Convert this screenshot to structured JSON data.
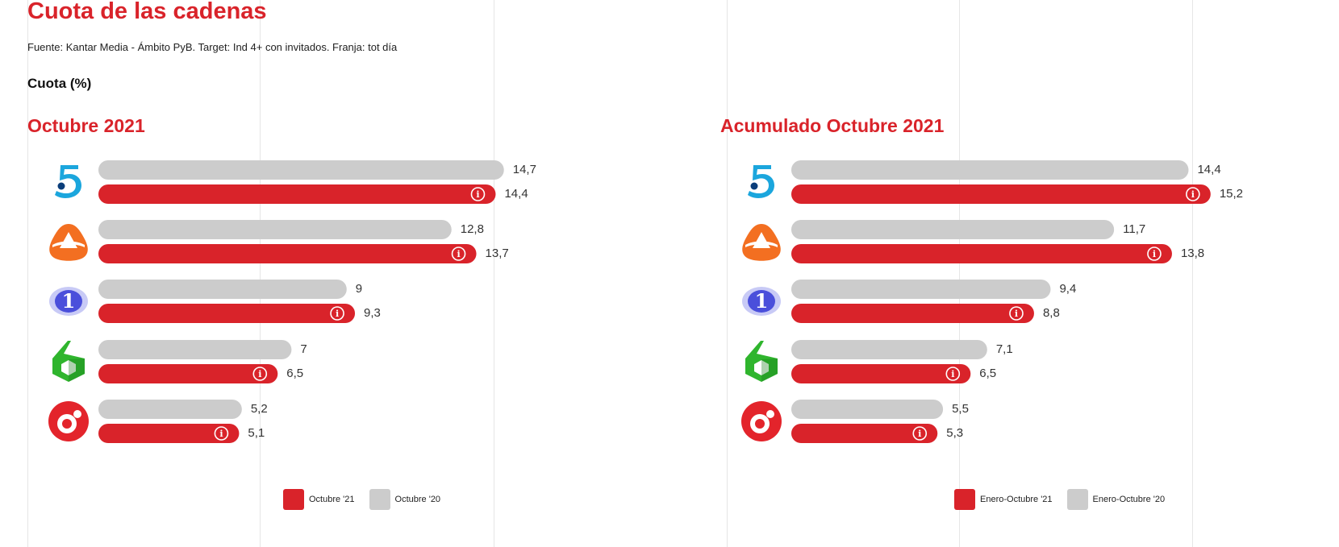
{
  "page": {
    "title": "Cuota de las cadenas",
    "source": "Fuente: Kantar Media - Ámbito PyB. Target: Ind 4+ con invitados. Franja: tot día",
    "unit_label": "Cuota (%)"
  },
  "colors": {
    "accent": "#d9232a",
    "current_bar": "#d9232a",
    "previous_bar": "#cccccc",
    "gridline": "#e6e6e6"
  },
  "channels": [
    {
      "name": "Telecinco",
      "icon": "telecinco-logo-icon"
    },
    {
      "name": "Antena 3",
      "icon": "antena3-logo-icon"
    },
    {
      "name": "La 1",
      "icon": "la1-logo-icon"
    },
    {
      "name": "laSexta",
      "icon": "lasexta-logo-icon"
    },
    {
      "name": "Cuatro",
      "icon": "cuatro-logo-icon"
    }
  ],
  "chart_data": [
    {
      "type": "bar",
      "orientation": "horizontal",
      "title": "Octubre 2021",
      "categories": [
        "Telecinco",
        "Antena 3",
        "La 1",
        "laSexta",
        "Cuatro"
      ],
      "series": [
        {
          "name": "Octubre '20",
          "values": [
            14.7,
            12.8,
            9,
            7,
            5.2
          ],
          "labels": [
            "14,7",
            "12,8",
            "9",
            "7",
            "5,2"
          ],
          "color": "#cccccc"
        },
        {
          "name": "Octubre '21",
          "values": [
            14.4,
            13.7,
            9.3,
            6.5,
            5.1
          ],
          "labels": [
            "14,4",
            "13,7",
            "9,3",
            "6,5",
            "5,1"
          ],
          "color": "#d9232a",
          "info_icon": true
        }
      ],
      "xlim": [
        0,
        20
      ],
      "legend": [
        {
          "label": "Octubre '21",
          "color": "#d9232a"
        },
        {
          "label": "Octubre '20",
          "color": "#cccccc"
        }
      ],
      "legend_position": "bottom"
    },
    {
      "type": "bar",
      "orientation": "horizontal",
      "title": "Acumulado Octubre 2021",
      "categories": [
        "Telecinco",
        "Antena 3",
        "La 1",
        "laSexta",
        "Cuatro"
      ],
      "series": [
        {
          "name": "Enero-Octubre '20",
          "values": [
            14.4,
            11.7,
            9.4,
            7.1,
            5.5
          ],
          "labels": [
            "14,4",
            "11,7",
            "9,4",
            "7,1",
            "5,5"
          ],
          "color": "#cccccc"
        },
        {
          "name": "Enero-Octubre '21",
          "values": [
            15.2,
            13.8,
            8.8,
            6.5,
            5.3
          ],
          "labels": [
            "15,2",
            "13,8",
            "8,8",
            "6,5",
            "5,3"
          ],
          "color": "#d9232a",
          "info_icon": true
        }
      ],
      "xlim": [
        0,
        20
      ],
      "legend": [
        {
          "label": "Enero-Octubre '21",
          "color": "#d9232a"
        },
        {
          "label": "Enero-Octubre '20",
          "color": "#cccccc"
        }
      ],
      "legend_position": "bottom"
    }
  ]
}
